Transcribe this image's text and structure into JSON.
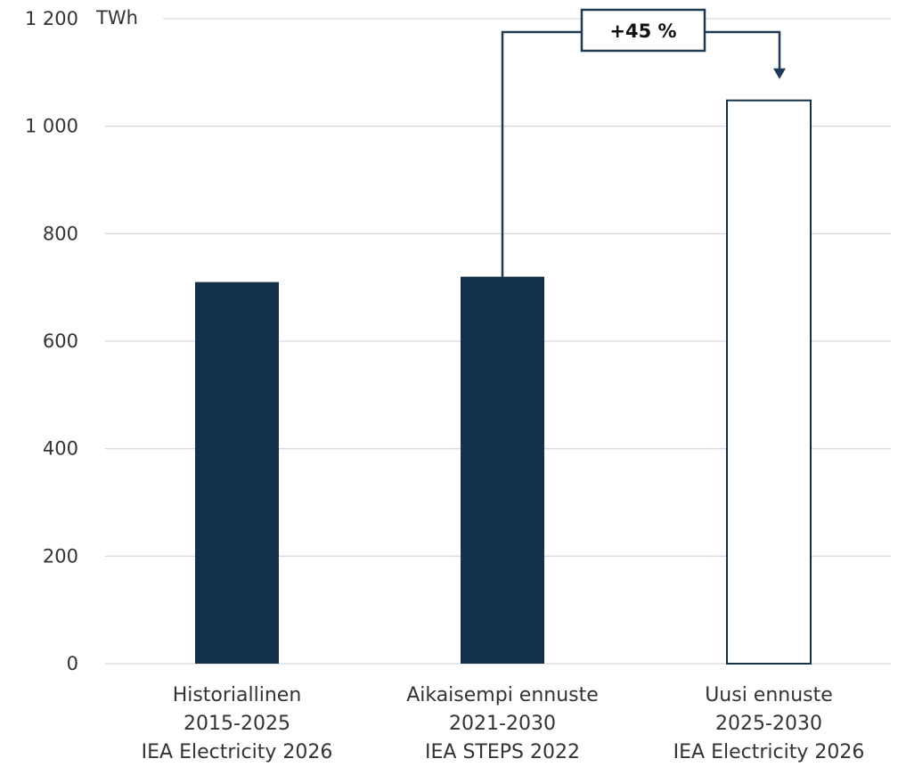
{
  "chart_data": {
    "type": "bar",
    "ylabel": "TWh",
    "ylim": [
      0,
      1200
    ],
    "yticks": [
      "0",
      "200",
      "400",
      "600",
      "800",
      "1 000",
      "1 200"
    ],
    "ytick_values": [
      0,
      200,
      400,
      600,
      800,
      1000,
      1200
    ],
    "grid": true,
    "categories": [
      [
        "Historiallinen",
        "2015-2025",
        "IEA Electricity 2026"
      ],
      [
        "Aikaisempi ennuste",
        "2021-2030",
        "IEA STEPS 2022"
      ],
      [
        "Uusi ennuste",
        "2025-2030",
        "IEA Electricity 2026"
      ]
    ],
    "values": [
      710,
      720,
      1048
    ],
    "bar_styles": [
      "filled",
      "filled",
      "outline"
    ],
    "colors": {
      "bar_fill": "#12304a",
      "outline": "#12304a",
      "grid": "#d9d9d9",
      "annotation": "#1f3a52"
    },
    "annotation": {
      "text": "+45 %",
      "from_bar": 1,
      "to_bar": 2
    }
  }
}
